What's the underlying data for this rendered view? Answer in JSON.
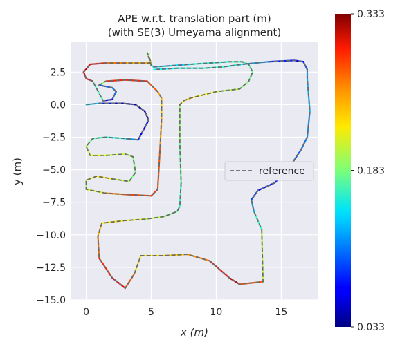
{
  "chart_data": {
    "type": "line",
    "title": "APE w.r.t. translation part (m)",
    "subtitle": "(with SE(3) Umeyama alignment)",
    "xlabel": "x (m)",
    "ylabel": "y (m)",
    "xlim": [
      -1.2,
      17.8
    ],
    "ylim": [
      -15.0,
      4.8
    ],
    "xticks": [
      0,
      5,
      10,
      15
    ],
    "yticks": [
      2.5,
      0.0,
      -2.5,
      -5.0,
      -7.5,
      -10.0,
      -12.5,
      -15.0
    ],
    "xtick_labels": [
      "0",
      "5",
      "10",
      "15"
    ],
    "ytick_labels": [
      "2.5",
      "0.0",
      "−2.5",
      "−5.0",
      "−7.5",
      "−10.0",
      "−12.5",
      "−15.0"
    ],
    "grid": true,
    "legend": {
      "placement": "center-right",
      "entries": [
        "reference"
      ]
    },
    "colorbar": {
      "min": 0.033,
      "max": 0.333,
      "ticks": [
        0.333,
        0.183,
        0.033
      ],
      "tick_labels": [
        "0.333",
        "0.183",
        "0.033"
      ],
      "colormap": "jet"
    },
    "series": [
      {
        "name": "reference",
        "style": "dashed",
        "points": [
          [
            0.0,
            0.0
          ],
          [
            1.0,
            0.1
          ],
          [
            2.0,
            0.1
          ],
          [
            2.8,
            0.1
          ],
          [
            3.8,
            0.0
          ],
          [
            4.5,
            -0.5
          ],
          [
            4.8,
            -1.2
          ],
          [
            4.0,
            -2.7
          ],
          [
            3.0,
            -2.6
          ],
          [
            1.5,
            -2.5
          ],
          [
            0.5,
            -2.6
          ],
          [
            0.0,
            -3.2
          ],
          [
            0.3,
            -3.9
          ],
          [
            1.5,
            -3.9
          ],
          [
            3.0,
            -3.8
          ],
          [
            3.6,
            -4.0
          ],
          [
            3.8,
            -5.2
          ],
          [
            3.3,
            -5.9
          ],
          [
            2.0,
            -5.7
          ],
          [
            0.8,
            -5.5
          ],
          [
            0.0,
            -5.8
          ],
          [
            0.0,
            -6.5
          ],
          [
            1.5,
            -6.8
          ],
          [
            3.0,
            -6.9
          ],
          [
            5.0,
            -7.0
          ],
          [
            5.5,
            -6.5
          ],
          [
            5.7,
            -3.0
          ],
          [
            5.8,
            -1.0
          ],
          [
            5.8,
            0.5
          ],
          [
            5.5,
            1.0
          ],
          [
            4.7,
            1.8
          ],
          [
            3.0,
            1.9
          ],
          [
            1.5,
            1.8
          ],
          [
            1.0,
            1.5
          ],
          [
            2.0,
            1.3
          ],
          [
            2.3,
            1.0
          ],
          [
            2.0,
            0.4
          ],
          [
            1.3,
            0.3
          ],
          [
            0.5,
            1.8
          ],
          [
            0.0,
            2.0
          ],
          [
            -0.2,
            2.5
          ],
          [
            0.3,
            3.1
          ],
          [
            1.5,
            3.2
          ],
          [
            3.0,
            3.2
          ],
          [
            5.0,
            3.2
          ],
          [
            4.7,
            4.0
          ],
          [
            5.0,
            3.0
          ],
          [
            5.2,
            2.9
          ],
          [
            8.0,
            3.1
          ],
          [
            11.0,
            3.3
          ],
          [
            12.0,
            3.3
          ],
          [
            12.5,
            3.1
          ],
          [
            12.8,
            2.5
          ],
          [
            12.5,
            1.8
          ],
          [
            11.8,
            1.2
          ],
          [
            10.0,
            1.0
          ],
          [
            8.0,
            0.5
          ],
          [
            7.5,
            0.3
          ],
          [
            7.2,
            0.0
          ],
          [
            7.2,
            -3.0
          ],
          [
            7.3,
            -6.0
          ],
          [
            7.2,
            -7.8
          ],
          [
            7.0,
            -8.2
          ],
          [
            6.0,
            -8.6
          ],
          [
            4.5,
            -8.8
          ],
          [
            3.0,
            -8.9
          ],
          [
            1.2,
            -9.1
          ],
          [
            0.9,
            -10.1
          ],
          [
            1.0,
            -11.8
          ],
          [
            2.0,
            -13.3
          ],
          [
            3.0,
            -14.1
          ],
          [
            3.7,
            -13.0
          ],
          [
            4.2,
            -11.6
          ],
          [
            6.0,
            -11.6
          ],
          [
            7.8,
            -11.5
          ],
          [
            9.5,
            -12.0
          ],
          [
            11.0,
            -13.3
          ],
          [
            11.8,
            -13.8
          ],
          [
            13.6,
            -13.6
          ],
          [
            13.5,
            -9.6
          ],
          [
            12.9,
            -8.2
          ],
          [
            12.7,
            -7.3
          ],
          [
            13.2,
            -6.6
          ],
          [
            14.5,
            -6.0
          ],
          [
            15.5,
            -5.0
          ],
          [
            16.5,
            -3.5
          ],
          [
            17.0,
            -2.5
          ],
          [
            17.2,
            -0.5
          ],
          [
            17.0,
            2.0
          ],
          [
            17.0,
            2.7
          ],
          [
            16.7,
            3.3
          ],
          [
            16.0,
            3.4
          ],
          [
            14.0,
            3.3
          ],
          [
            12.0,
            3.1
          ],
          [
            10.5,
            2.9
          ],
          [
            9.0,
            2.8
          ],
          [
            7.0,
            2.8
          ],
          [
            5.2,
            2.7
          ]
        ]
      },
      {
        "name": "",
        "style": "error-colored",
        "points": [
          [
            0.0,
            0.0,
            0.17
          ],
          [
            1.0,
            0.1,
            0.1
          ],
          [
            2.0,
            0.1,
            0.06
          ],
          [
            2.8,
            0.1,
            0.05
          ],
          [
            3.8,
            0.0,
            0.04
          ],
          [
            4.5,
            -0.5,
            0.05
          ],
          [
            4.8,
            -1.2,
            0.05
          ],
          [
            4.0,
            -2.7,
            0.08
          ],
          [
            3.0,
            -2.6,
            0.15
          ],
          [
            1.5,
            -2.5,
            0.16
          ],
          [
            0.5,
            -2.6,
            0.17
          ],
          [
            0.0,
            -3.2,
            0.19
          ],
          [
            0.3,
            -3.9,
            0.22
          ],
          [
            1.5,
            -3.9,
            0.21
          ],
          [
            3.0,
            -3.8,
            0.2
          ],
          [
            3.6,
            -4.0,
            0.19
          ],
          [
            3.8,
            -5.2,
            0.18
          ],
          [
            3.3,
            -5.9,
            0.18
          ],
          [
            2.0,
            -5.7,
            0.22
          ],
          [
            0.8,
            -5.5,
            0.23
          ],
          [
            0.0,
            -5.8,
            0.2
          ],
          [
            0.0,
            -6.5,
            0.18
          ],
          [
            1.5,
            -6.8,
            0.24
          ],
          [
            3.0,
            -6.9,
            0.27
          ],
          [
            5.0,
            -7.0,
            0.28
          ],
          [
            5.5,
            -6.5,
            0.28
          ],
          [
            5.7,
            -3.0,
            0.26
          ],
          [
            5.8,
            -1.0,
            0.24
          ],
          [
            5.8,
            0.5,
            0.23
          ],
          [
            5.5,
            1.0,
            0.26
          ],
          [
            4.7,
            1.8,
            0.28
          ],
          [
            3.0,
            1.9,
            0.29
          ],
          [
            1.5,
            1.8,
            0.28
          ],
          [
            1.0,
            1.5,
            0.1
          ],
          [
            2.0,
            1.3,
            0.1
          ],
          [
            2.3,
            1.0,
            0.12
          ],
          [
            2.0,
            0.4,
            0.08
          ],
          [
            1.3,
            0.3,
            0.06
          ],
          [
            0.5,
            1.8,
            0.28
          ],
          [
            0.0,
            2.0,
            0.3
          ],
          [
            -0.2,
            2.5,
            0.31
          ],
          [
            0.3,
            3.1,
            0.31
          ],
          [
            1.5,
            3.2,
            0.27
          ],
          [
            3.0,
            3.2,
            0.25
          ],
          [
            5.0,
            3.2,
            0.24
          ],
          [
            4.7,
            4.0,
            0.24
          ],
          [
            5.0,
            3.0,
            0.14
          ],
          [
            5.2,
            2.9,
            0.13
          ],
          [
            8.0,
            3.1,
            0.14
          ],
          [
            11.0,
            3.3,
            0.17
          ],
          [
            12.0,
            3.3,
            0.17
          ],
          [
            12.5,
            3.1,
            0.17
          ],
          [
            12.8,
            2.5,
            0.17
          ],
          [
            12.5,
            1.8,
            0.18
          ],
          [
            11.8,
            1.2,
            0.19
          ],
          [
            10.0,
            1.0,
            0.21
          ],
          [
            8.0,
            0.5,
            0.23
          ],
          [
            7.5,
            0.3,
            0.24
          ],
          [
            7.2,
            0.0,
            0.2
          ],
          [
            7.2,
            -3.0,
            0.18
          ],
          [
            7.3,
            -6.0,
            0.17
          ],
          [
            7.2,
            -7.8,
            0.15
          ],
          [
            7.0,
            -8.2,
            0.17
          ],
          [
            6.0,
            -8.6,
            0.19
          ],
          [
            4.5,
            -8.8,
            0.21
          ],
          [
            3.0,
            -8.9,
            0.22
          ],
          [
            1.2,
            -9.1,
            0.23
          ],
          [
            0.9,
            -10.1,
            0.25
          ],
          [
            1.0,
            -11.8,
            0.27
          ],
          [
            2.0,
            -13.3,
            0.3
          ],
          [
            3.0,
            -14.1,
            0.3
          ],
          [
            3.7,
            -13.0,
            0.24
          ],
          [
            4.2,
            -11.6,
            0.22
          ],
          [
            6.0,
            -11.6,
            0.23
          ],
          [
            7.8,
            -11.5,
            0.24
          ],
          [
            9.5,
            -12.0,
            0.27
          ],
          [
            11.0,
            -13.3,
            0.31
          ],
          [
            11.8,
            -13.8,
            0.32
          ],
          [
            13.6,
            -13.6,
            0.22
          ],
          [
            13.5,
            -9.6,
            0.18
          ],
          [
            12.9,
            -8.2,
            0.14
          ],
          [
            12.7,
            -7.3,
            0.1
          ],
          [
            13.2,
            -6.6,
            0.08
          ],
          [
            14.5,
            -6.0,
            0.07
          ],
          [
            15.5,
            -5.0,
            0.09
          ],
          [
            16.5,
            -3.5,
            0.1
          ],
          [
            17.0,
            -2.5,
            0.11
          ],
          [
            17.2,
            -0.5,
            0.12
          ],
          [
            17.0,
            2.0,
            0.13
          ],
          [
            17.0,
            2.7,
            0.11
          ],
          [
            16.7,
            3.3,
            0.08
          ],
          [
            16.0,
            3.4,
            0.06
          ],
          [
            14.0,
            3.3,
            0.1
          ],
          [
            12.0,
            3.1,
            0.14
          ],
          [
            10.5,
            2.9,
            0.16
          ],
          [
            9.0,
            2.8,
            0.16
          ],
          [
            7.0,
            2.8,
            0.15
          ],
          [
            5.2,
            2.7,
            0.14
          ]
        ]
      }
    ]
  }
}
